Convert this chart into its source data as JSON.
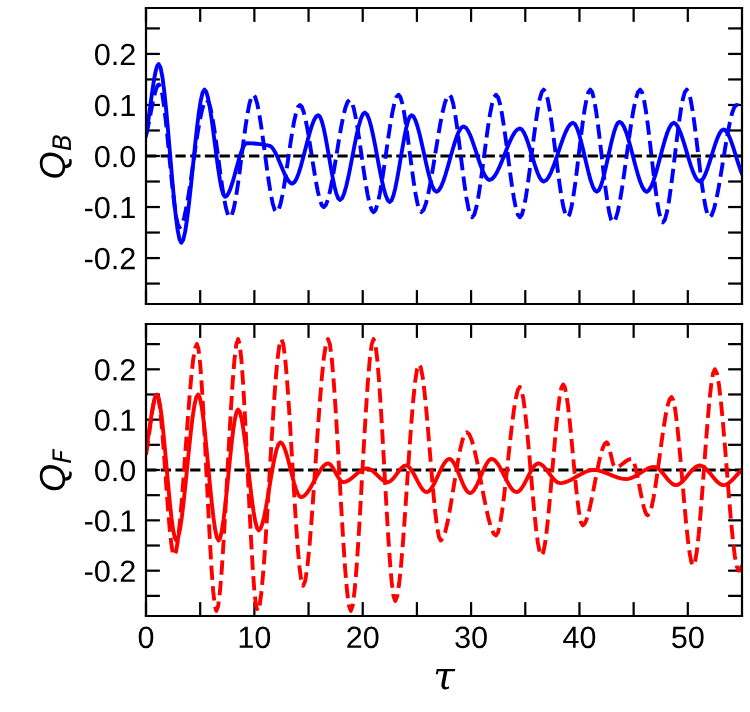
{
  "chart_data": [
    {
      "type": "line",
      "ylabel": "Q$_{B}$",
      "tick_labels": "y",
      "xlim": [
        0,
        55
      ],
      "ylim": [
        -0.29,
        0.29
      ],
      "xticks": [
        {
          "value": 0,
          "label": null
        },
        {
          "value": 5,
          "label": null
        },
        {
          "value": 10,
          "label": null
        },
        {
          "value": 15,
          "label": null
        },
        {
          "value": 20,
          "label": null
        },
        {
          "value": 25,
          "label": null
        },
        {
          "value": 30,
          "label": null
        },
        {
          "value": 35,
          "label": null
        },
        {
          "value": 40,
          "label": null
        },
        {
          "value": 45,
          "label": null
        },
        {
          "value": 50,
          "label": null
        }
      ],
      "yticks": [
        {
          "value": -0.25,
          "label": null
        },
        {
          "value": -0.2,
          "label": "-0.2"
        },
        {
          "value": -0.15,
          "label": null
        },
        {
          "value": -0.1,
          "label": "-0.1"
        },
        {
          "value": -0.05,
          "label": null
        },
        {
          "value": 0,
          "label": "0.0"
        },
        {
          "value": 0.05,
          "label": null
        },
        {
          "value": 0.1,
          "label": "0.1"
        },
        {
          "value": 0.15,
          "label": null
        },
        {
          "value": 0.2,
          "label": "0.2"
        },
        {
          "value": 0.25,
          "label": null
        }
      ],
      "ref_lines": [
        {
          "axis": "y",
          "value": 0,
          "color": "#000000",
          "line_style": "dashed"
        }
      ],
      "grid": false,
      "legend": false,
      "marker": "none",
      "series": [
        {
          "color": "#0000ff",
          "line_style": "solid",
          "x": [
            0,
            1.17,
            3.26,
            5.4,
            7.3,
            9.3,
            11.4,
            13.5,
            15.9,
            17.9,
            20.2,
            22.5,
            24.5,
            26.8,
            29.3,
            31.7,
            34.5,
            36.7,
            39.4,
            41.6,
            43.7,
            46.2,
            48.7,
            51.1,
            53.3,
            55
          ],
          "values": [
            0.04,
            0.18,
            -0.17,
            0.13,
            -0.08,
            0.025,
            0.02,
            -0.054,
            0.08,
            -0.086,
            0.085,
            -0.09,
            0.08,
            -0.07,
            0.058,
            -0.047,
            0.054,
            -0.05,
            0.065,
            -0.07,
            0.067,
            -0.07,
            0.065,
            -0.05,
            0.052,
            -0.035
          ]
        },
        {
          "color": "#0000ff",
          "line_style": "dashed",
          "x": [
            0,
            1.2,
            3.1,
            5.6,
            7.75,
            9.9,
            12.05,
            14.2,
            16.4,
            18.8,
            21.0,
            23.3,
            25.4,
            28.0,
            30.1,
            32.3,
            34.5,
            36.7,
            38.9,
            41.0,
            43.1,
            45.6,
            47.7,
            49.9,
            52.0,
            54.5,
            55
          ],
          "values": [
            0.04,
            0.14,
            -0.14,
            0.11,
            -0.12,
            0.12,
            -0.11,
            0.1,
            -0.1,
            0.11,
            -0.11,
            0.12,
            -0.11,
            0.12,
            -0.12,
            0.12,
            -0.12,
            0.13,
            -0.12,
            0.13,
            -0.13,
            0.13,
            -0.13,
            0.13,
            -0.12,
            0.1,
            0.09
          ]
        }
      ]
    },
    {
      "type": "line",
      "ylabel": "Q$_{F}$",
      "xlabel": "τ",
      "xlim": [
        0,
        55
      ],
      "ylim": [
        -0.29,
        0.29
      ],
      "xticks": [
        0,
        {
          "value": 5,
          "label": null
        },
        10,
        {
          "value": 15,
          "label": null
        },
        20,
        {
          "value": 25,
          "label": null
        },
        30,
        {
          "value": 35,
          "label": null
        },
        40,
        {
          "value": 45,
          "label": null
        },
        50
      ],
      "yticks": [
        {
          "value": -0.25,
          "label": null
        },
        {
          "value": -0.2,
          "label": "-0.2"
        },
        {
          "value": -0.15,
          "label": null
        },
        {
          "value": -0.1,
          "label": "-0.1"
        },
        {
          "value": -0.05,
          "label": null
        },
        {
          "value": 0,
          "label": "0.0"
        },
        {
          "value": 0.05,
          "label": null
        },
        {
          "value": 0.1,
          "label": "0.1"
        },
        {
          "value": 0.15,
          "label": null
        },
        {
          "value": 0.2,
          "label": "0.2"
        },
        {
          "value": 0.25,
          "label": null
        }
      ],
      "ref_lines": [
        {
          "axis": "y",
          "value": 0,
          "color": "#000000",
          "line_style": "dashed"
        }
      ],
      "grid": false,
      "legend": false,
      "marker": "none",
      "series": [
        {
          "color": "#ff0000",
          "line_style": "solid",
          "x": [
            0,
            1.0,
            2.8,
            4.8,
            6.7,
            8.5,
            10.4,
            12.4,
            14.3,
            16.8,
            18.2,
            20.4,
            22.3,
            24.0,
            25.9,
            28.0,
            29.9,
            31.9,
            34.2,
            36.2,
            38.2,
            41.3,
            44.3,
            46.9,
            48.9,
            51.1,
            53.3,
            55
          ],
          "values": [
            0.04,
            0.15,
            -0.14,
            0.15,
            -0.14,
            0.12,
            -0.12,
            0.055,
            -0.054,
            0.013,
            -0.024,
            0.003,
            -0.024,
            0.009,
            -0.044,
            0.022,
            -0.046,
            0.022,
            -0.044,
            0.013,
            -0.026,
            0.0,
            -0.018,
            0.006,
            -0.03,
            0.009,
            -0.03,
            0.0
          ]
        },
        {
          "color": "#ff0000",
          "line_style": "dashed",
          "x": [
            0,
            1.0,
            2.6,
            4.7,
            6.5,
            8.5,
            10.3,
            12.5,
            14.5,
            16.8,
            18.9,
            21.0,
            23.0,
            25.2,
            27.2,
            29.6,
            32.3,
            34.5,
            36.5,
            38.5,
            40.3,
            42.5,
            43.3,
            44.8,
            46.3,
            48.5,
            50.5,
            52.5,
            54.7,
            55
          ],
          "values": [
            0.03,
            0.15,
            -0.17,
            0.25,
            -0.28,
            0.26,
            -0.28,
            0.26,
            -0.23,
            0.26,
            -0.28,
            0.26,
            -0.26,
            0.21,
            -0.14,
            0.075,
            -0.13,
            0.165,
            -0.17,
            0.17,
            -0.11,
            0.055,
            0.005,
            0.022,
            -0.09,
            0.145,
            -0.19,
            0.2,
            -0.2,
            -0.19
          ]
        }
      ]
    }
  ]
}
